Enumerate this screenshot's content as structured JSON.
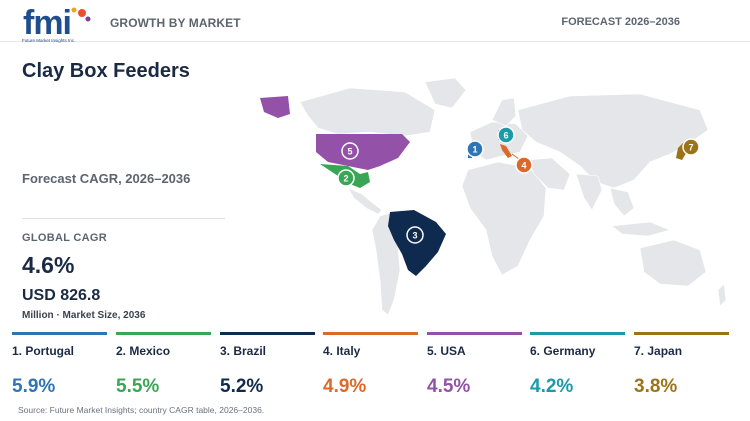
{
  "header": {
    "logo_text": "fmi",
    "logo_tagline": "Future Market Insights Inc.",
    "left_label": "GROWTH BY MARKET",
    "right_label": "FORECAST 2026–2036"
  },
  "title": "Clay Box Feeders",
  "forecast_label": "Forecast CAGR, 2026–2036",
  "global": {
    "label": "GLOBAL CAGR",
    "value": "4.6%",
    "market_value": "USD 826.8",
    "market_sub": "Million · Market Size, 2036"
  },
  "countries": [
    {
      "rank": "1",
      "label": "1. Portugal",
      "cagr": "5.9%",
      "color": "#2e75b6"
    },
    {
      "rank": "2",
      "label": "2. Mexico",
      "cagr": "5.5%",
      "color": "#3aa655"
    },
    {
      "rank": "3",
      "label": "3. Brazil",
      "cagr": "5.2%",
      "color": "#0f2a4f"
    },
    {
      "rank": "4",
      "label": "4. Italy",
      "cagr": "4.9%",
      "color": "#d96a2b"
    },
    {
      "rank": "5",
      "label": "5. USA",
      "cagr": "4.5%",
      "color": "#9451a8"
    },
    {
      "rank": "6",
      "label": "6. Germany",
      "cagr": "4.2%",
      "color": "#1b9aa8"
    },
    {
      "rank": "7",
      "label": "7. Japan",
      "cagr": "3.8%",
      "color": "#9a7416"
    }
  ],
  "source": "Source: Future Market Insights; country CAGR table, 2026–2036."
}
